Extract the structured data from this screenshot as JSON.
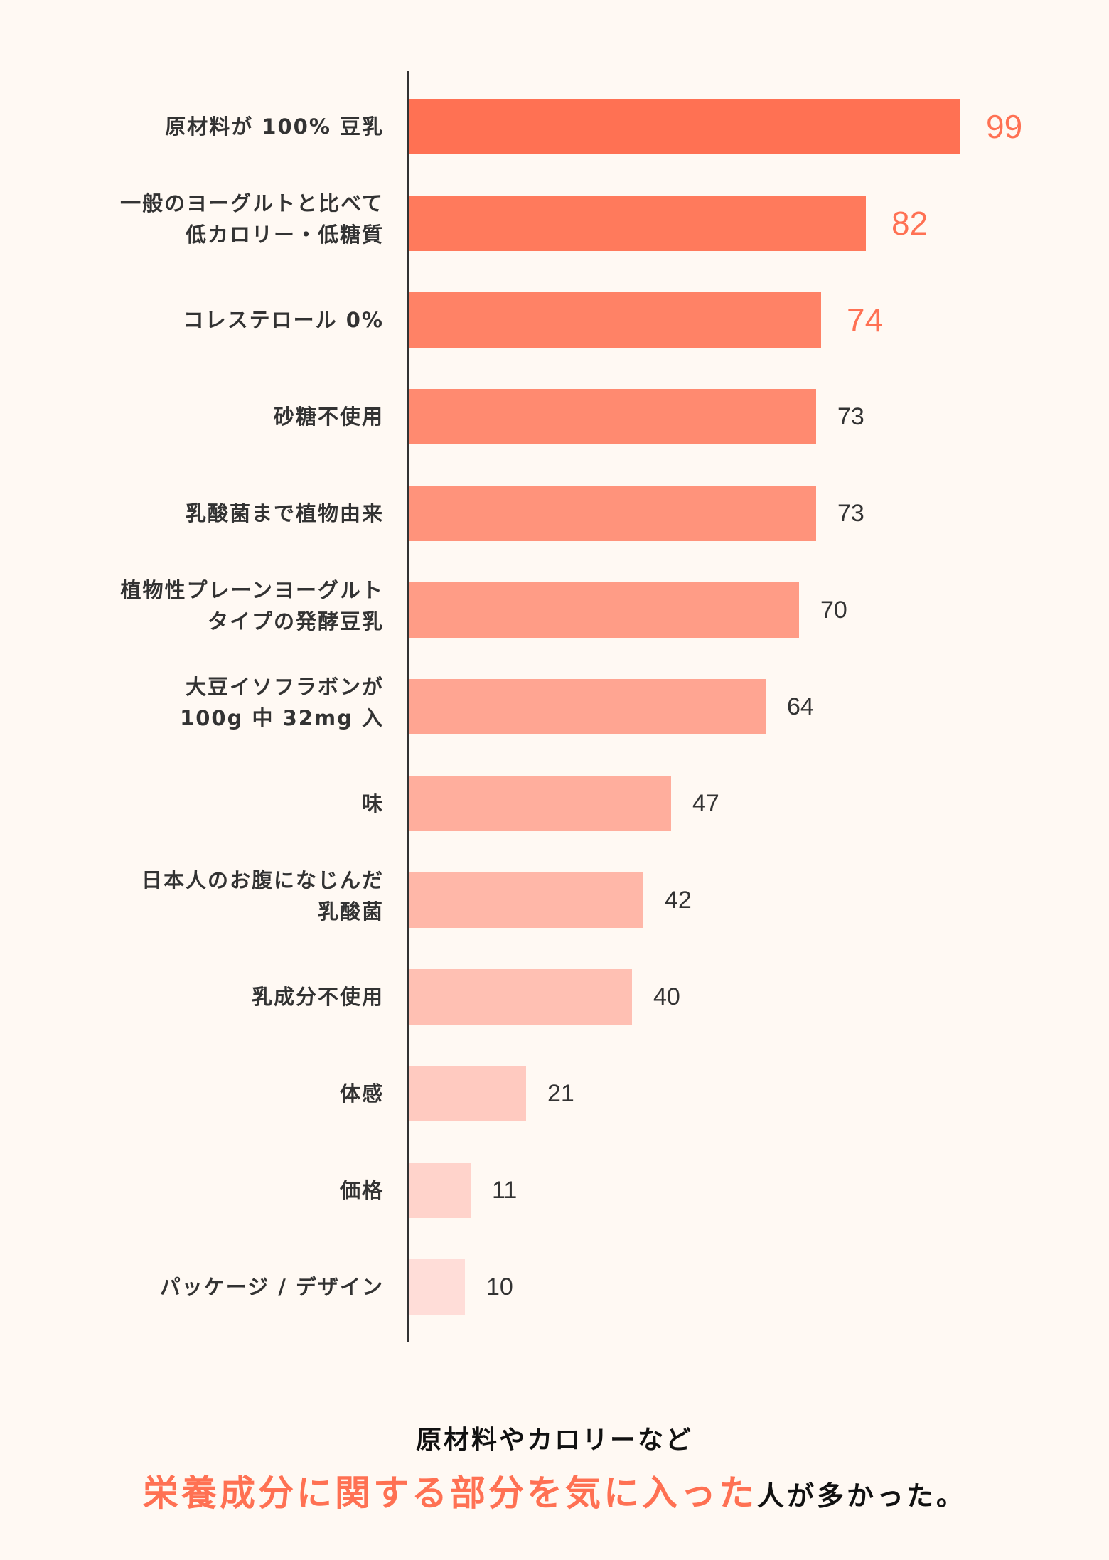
{
  "chart_data": {
    "type": "bar",
    "orientation": "horizontal",
    "title": "",
    "xlabel": "",
    "ylabel": "",
    "xlim": [
      0,
      100
    ],
    "grid": false,
    "legend": null,
    "categories": [
      "原材料が 100% 豆乳",
      "一般のヨーグルトと比べて 低カロリー・低糖質",
      "コレステロール 0%",
      "砂糖不使用",
      "乳酸菌まで植物由来",
      "植物性プレーンヨーグルト タイプの発酵豆乳",
      "大豆イソフラボンが 100g 中 32mg 入",
      "味",
      "日本人のお腹になじんだ 乳酸菌",
      "乳成分不使用",
      "体感",
      "価格",
      "パッケージ / デザイン"
    ],
    "values": [
      99,
      82,
      74,
      73,
      73,
      70,
      64,
      47,
      42,
      40,
      21,
      11,
      10
    ],
    "highlighted_top_n": 3
  },
  "rows": [
    {
      "lines": [
        "原材料が 100% 豆乳"
      ],
      "value": "99",
      "v": 99,
      "color": "#FF7153",
      "highlight": true
    },
    {
      "lines": [
        "一般のヨーグルトと比べて",
        "低カロリー・低糖質"
      ],
      "value": "82",
      "v": 82,
      "color": "#FF7A5C",
      "highlight": true
    },
    {
      "lines": [
        "コレステロール 0%"
      ],
      "value": "74",
      "v": 74,
      "color": "#FF8266",
      "highlight": true
    },
    {
      "lines": [
        "砂糖不使用"
      ],
      "value": "73",
      "v": 73,
      "color": "#FF8A70",
      "highlight": false
    },
    {
      "lines": [
        "乳酸菌まで植物由来"
      ],
      "value": "73",
      "v": 73,
      "color": "#FF937B",
      "highlight": false
    },
    {
      "lines": [
        "植物性プレーンヨーグルト",
        "タイプの発酵豆乳"
      ],
      "value": "70",
      "v": 70,
      "color": "#FF9C86",
      "highlight": false
    },
    {
      "lines": [
        "大豆イソフラボンが",
        "100g 中 32mg 入"
      ],
      "value": "64",
      "v": 64,
      "color": "#FFA592",
      "highlight": false
    },
    {
      "lines": [
        "味"
      ],
      "value": "47",
      "v": 47,
      "color": "#FFAE9D",
      "highlight": false
    },
    {
      "lines": [
        "日本人のお腹になじんだ",
        "乳酸菌"
      ],
      "value": "42",
      "v": 42,
      "color": "#FFB7A8",
      "highlight": false
    },
    {
      "lines": [
        "乳成分不使用"
      ],
      "value": "40",
      "v": 40,
      "color": "#FFC0B3",
      "highlight": false
    },
    {
      "lines": [
        "体感"
      ],
      "value": "21",
      "v": 21,
      "color": "#FFCAC0",
      "highlight": false
    },
    {
      "lines": [
        "価格"
      ],
      "value": "11",
      "v": 11,
      "color": "#FFD3CB",
      "highlight": false
    },
    {
      "lines": [
        "パッケージ / デザイン"
      ],
      "value": "10",
      "v": 10,
      "color": "#FFDDD8",
      "highlight": false
    }
  ],
  "caption": {
    "line1": "原材料やカロリーなど",
    "line2_emphasis": "栄養成分に関する部分を気に入った",
    "line2_rest": "人が多かった。"
  },
  "colors": {
    "background": "#FFF9F3",
    "accent": "#FF7153",
    "text": "#333333",
    "axis": "#333333"
  }
}
